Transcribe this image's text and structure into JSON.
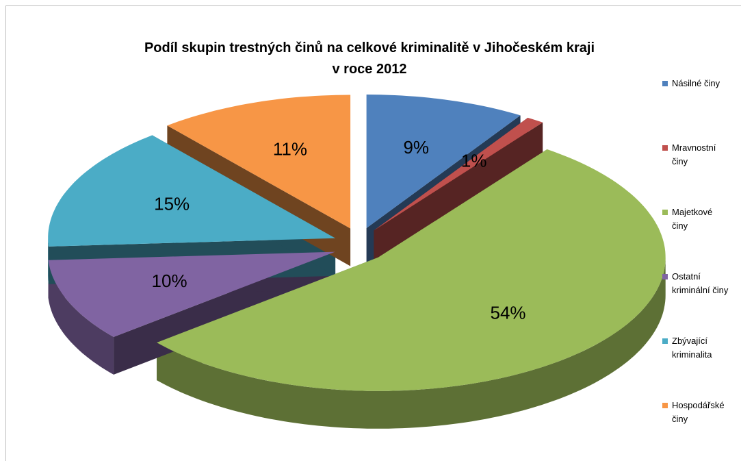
{
  "chart_data": {
    "type": "pie3d",
    "title": [
      "Podíl skupin trestných činů na celkové kriminalitě v Jihočeském kraji",
      "v roce 2012"
    ],
    "categories": [
      "Násilné činy",
      "Mravnostní činy",
      "Majetkové činy",
      "Ostatní kriminální činy",
      "Zbývající kriminalita",
      "Hospodářské činy"
    ],
    "values": [
      9,
      1,
      54,
      10,
      15,
      11
    ],
    "value_labels": [
      "9%",
      "1%",
      "54%",
      "10%",
      "15%",
      "11%"
    ],
    "colors": [
      "#4f81bd",
      "#c0504d",
      "#9bbb59",
      "#8064a2",
      "#4bacc6",
      "#f79646"
    ],
    "legend": "right"
  }
}
